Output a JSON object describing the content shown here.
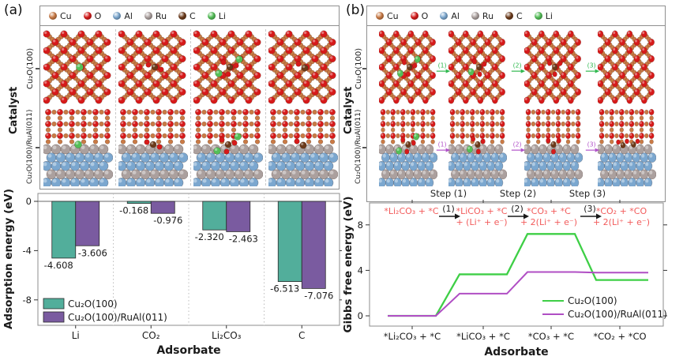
{
  "figure": {
    "panels": [
      {
        "label": "(a)",
        "axis_title": "Catalyst",
        "row_labels": [
          "Cu₂O(100)",
          "Cu₂O(100)/RuAl(011)"
        ]
      },
      {
        "label": "(b)",
        "axis_title": "Catalyst",
        "row_labels": [
          "Cu₂O(100)",
          "Cu₂O(100)/RuAl(011)"
        ],
        "step_labels": [
          "Step (1)",
          "Step (2)",
          "Step (3)"
        ],
        "arrow_labels": [
          "(1)",
          "(2)",
          "(3)"
        ],
        "arrow_colors": {
          "top": "#2eb84e",
          "bottom": "#b050c8"
        }
      }
    ]
  },
  "atom_legend": [
    {
      "element": "Cu",
      "color": "#c97a45"
    },
    {
      "element": "O",
      "color": "#d61a1a"
    },
    {
      "element": "Al",
      "color": "#7ba7cf"
    },
    {
      "element": "Ru",
      "color": "#aba09e"
    },
    {
      "element": "C",
      "color": "#6b3a1a"
    },
    {
      "element": "Li",
      "color": "#53bf57"
    }
  ],
  "structures": {
    "a": {
      "top": [
        "Li",
        "CO2",
        "Li2CO3",
        "C"
      ],
      "bottom": [
        "Li",
        "CO2",
        "Li2CO3",
        "C"
      ]
    },
    "b": {
      "top": [
        "Li2CO3",
        "LiCO3",
        "CO3",
        "none"
      ],
      "bottom": [
        "Li2CO3",
        "LiCO3",
        "CO3",
        "CO2CO"
      ]
    }
  },
  "chart_data": [
    {
      "type": "bar",
      "panel": "a",
      "title": "",
      "categories": [
        "Li",
        "CO₂",
        "Li₂CO₃",
        "C"
      ],
      "series": [
        {
          "name": "Cu₂O(100)",
          "color": "#52ae9b",
          "values": [
            -4.608,
            -0.168,
            -2.32,
            -6.513
          ]
        },
        {
          "name": "Cu₂O(100)/RuAl(011)",
          "color": "#7a5ba0",
          "values": [
            -3.606,
            -0.976,
            -2.463,
            -7.076
          ]
        }
      ],
      "xlabel": "Adsorbate",
      "ylabel": "Adsorption energy (eV)",
      "ylim": [
        -9.6,
        0.65
      ],
      "yticks": [
        0,
        -4,
        -8
      ],
      "value_labels": true,
      "legend_position": "bottom-left",
      "grid": "dotted-category-separators"
    },
    {
      "type": "line",
      "panel": "b",
      "title": "",
      "categories": [
        "*Li₂CO₃ + *C",
        "*LiCO₃ + *C",
        "*CO₃ + *C",
        "*CO₂ + *CO"
      ],
      "series": [
        {
          "name": "Cu₂O(100)",
          "color": "#3ecf46",
          "values": [
            0,
            3.65,
            7.2,
            3.15
          ]
        },
        {
          "name": "Cu₂O(100)/RuAl(011)",
          "color": "#b04ec4",
          "values": [
            0,
            1.95,
            3.85,
            3.8
          ]
        }
      ],
      "xlabel": "Adsorbate",
      "ylabel": "Gibbs free energy (eV)",
      "ylim": [
        -0.9,
        9.9
      ],
      "yticks": [
        0,
        4,
        8
      ],
      "line_style": "step-plateau",
      "legend_position": "bottom-right",
      "annotation": {
        "color": "#f25b5b",
        "states": [
          [
            "*Li₂CO₃ + *C"
          ],
          [
            "*LiCO₃ + *C",
            "+ (Li⁺ + e⁻)"
          ],
          [
            "*CO₃ + *C",
            "+ 2(Li⁺ + e⁻)"
          ],
          [
            "*CO₂ + *CO",
            "+ 2(Li⁺ + e⁻)"
          ]
        ],
        "steps": [
          "(1)",
          "(2)",
          "(3)"
        ]
      }
    }
  ]
}
